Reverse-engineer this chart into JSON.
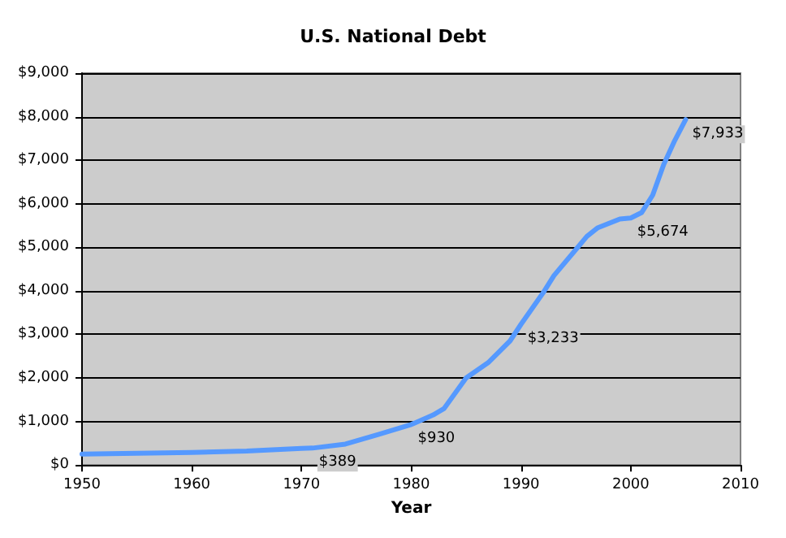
{
  "chart_data": {
    "type": "line",
    "title": "U.S. National Debt",
    "xlabel": "Year",
    "x": [
      1950,
      1955,
      1960,
      1965,
      1970,
      1971,
      1974,
      1977,
      1980,
      1982,
      1983,
      1985,
      1987,
      1989,
      1990,
      1992,
      1993,
      1995,
      1996,
      1997,
      1999,
      2000,
      2001,
      2002,
      2003,
      2004,
      2005
    ],
    "series": [
      {
        "color": "#5599ff",
        "values": [
          250,
          270,
          290,
          320,
          380,
          389,
          480,
          700,
          930,
          1150,
          1300,
          2000,
          2350,
          2850,
          3233,
          3950,
          4350,
          4950,
          5250,
          5450,
          5650,
          5674,
          5800,
          6200,
          6900,
          7450,
          7933
        ],
        "value_labels": [
          null,
          null,
          null,
          null,
          null,
          "$389",
          null,
          null,
          "$930",
          null,
          null,
          null,
          null,
          null,
          "$3,233",
          null,
          null,
          null,
          null,
          null,
          null,
          "$5,674",
          null,
          null,
          null,
          null,
          "$7,933"
        ]
      }
    ],
    "xlim": [
      1950,
      2010
    ],
    "xticks": [
      1950,
      1960,
      1970,
      1980,
      1990,
      2000,
      2010
    ],
    "ylim": [
      0,
      9000
    ],
    "yticks": [
      {
        "value": 0,
        "label": "$0"
      },
      {
        "value": 1000,
        "label": "$1,000"
      },
      {
        "value": 2000,
        "label": "$2,000"
      },
      {
        "value": 3000,
        "label": "$3,000"
      },
      {
        "value": 4000,
        "label": "$4,000"
      },
      {
        "value": 5000,
        "label": "$5,000"
      },
      {
        "value": 6000,
        "label": "$6,000"
      },
      {
        "value": 7000,
        "label": "$7,000"
      },
      {
        "value": 8000,
        "label": "$8,000"
      },
      {
        "value": 9000,
        "label": "$9,000"
      }
    ],
    "grid": "y",
    "marker": "none",
    "line_style": "solid"
  }
}
